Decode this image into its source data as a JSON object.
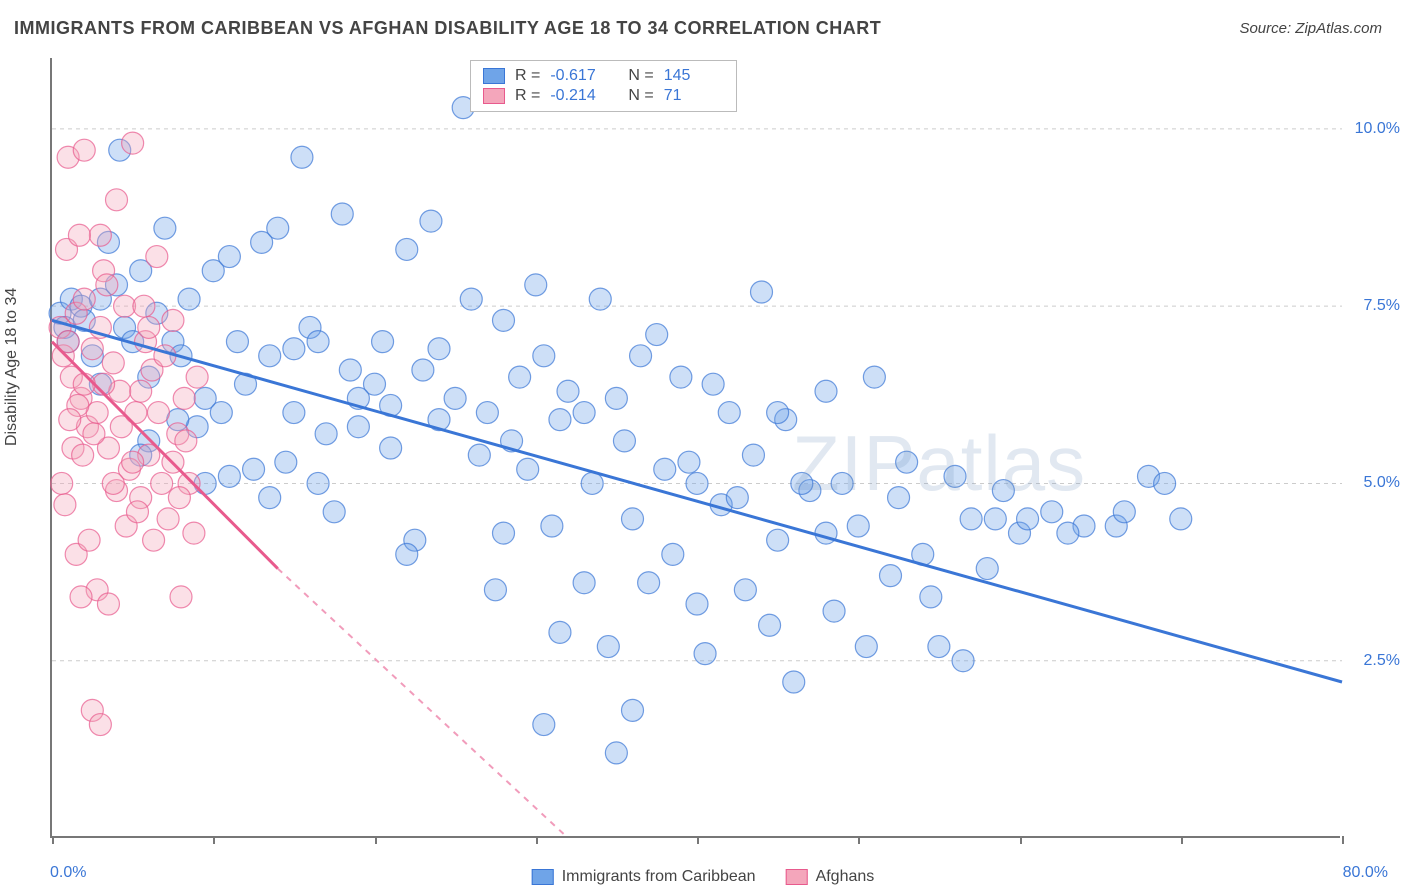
{
  "title": "IMMIGRANTS FROM CARIBBEAN VS AFGHAN DISABILITY AGE 18 TO 34 CORRELATION CHART",
  "source_label": "Source: ZipAtlas.com",
  "ylabel": "Disability Age 18 to 34",
  "watermark": "ZIPatlas",
  "chart": {
    "type": "scatter",
    "background_color": "#ffffff",
    "grid_color": "#cccccc",
    "axis_color": "#777777",
    "xlim": [
      0,
      80
    ],
    "ylim": [
      0,
      11
    ],
    "xticks": [
      0,
      10,
      20,
      30,
      40,
      50,
      60,
      70,
      80
    ],
    "x_display_min": "0.0%",
    "x_display_max": "80.0%",
    "ygrid": [
      2.5,
      5.0,
      7.5,
      10.0
    ],
    "ygrid_labels": [
      "2.5%",
      "5.0%",
      "7.5%",
      "10.0%"
    ],
    "tick_label_color": "#3a76d6",
    "marker_radius": 11,
    "marker_opacity": 0.35,
    "marker_stroke_opacity": 0.7,
    "title_fontsize": 18,
    "label_fontsize": 16
  },
  "series": [
    {
      "name": "Immigrants from Caribbean",
      "color": "#6fa4e8",
      "stroke": "#3a76d6",
      "R": "-0.617",
      "N": "145",
      "trend": {
        "x1": 0,
        "y1": 7.3,
        "x2": 80,
        "y2": 2.2,
        "solid": true,
        "dash_after_x": 80
      },
      "points": [
        [
          0.5,
          7.4
        ],
        [
          0.8,
          7.2
        ],
        [
          1.0,
          7.0
        ],
        [
          1.2,
          7.6
        ],
        [
          1.8,
          7.5
        ],
        [
          2.0,
          7.3
        ],
        [
          2.5,
          6.8
        ],
        [
          3.0,
          7.6
        ],
        [
          3.5,
          8.4
        ],
        [
          4.0,
          7.8
        ],
        [
          4.2,
          9.7
        ],
        [
          4.5,
          7.2
        ],
        [
          5.0,
          7.0
        ],
        [
          5.5,
          8.0
        ],
        [
          6.0,
          6.5
        ],
        [
          6.5,
          7.4
        ],
        [
          7.0,
          8.6
        ],
        [
          7.5,
          7.0
        ],
        [
          8.0,
          6.8
        ],
        [
          8.5,
          7.6
        ],
        [
          9.0,
          5.8
        ],
        [
          9.5,
          6.2
        ],
        [
          10.0,
          8.0
        ],
        [
          10.5,
          6.0
        ],
        [
          11.0,
          8.2
        ],
        [
          11.5,
          7.0
        ],
        [
          12.0,
          6.4
        ],
        [
          12.5,
          5.2
        ],
        [
          13.0,
          8.4
        ],
        [
          13.5,
          6.8
        ],
        [
          14.0,
          8.6
        ],
        [
          14.5,
          5.3
        ],
        [
          15.0,
          6.0
        ],
        [
          15.5,
          9.6
        ],
        [
          16.0,
          7.2
        ],
        [
          16.5,
          7.0
        ],
        [
          17.0,
          5.7
        ],
        [
          18.0,
          8.8
        ],
        [
          18.5,
          6.6
        ],
        [
          19.0,
          5.8
        ],
        [
          20.0,
          6.4
        ],
        [
          20.5,
          7.0
        ],
        [
          21.0,
          5.5
        ],
        [
          22.0,
          8.3
        ],
        [
          22.5,
          4.2
        ],
        [
          23.0,
          6.6
        ],
        [
          23.5,
          8.7
        ],
        [
          24.0,
          5.9
        ],
        [
          25.0,
          6.2
        ],
        [
          25.5,
          10.3
        ],
        [
          26.0,
          7.6
        ],
        [
          26.5,
          5.4
        ],
        [
          27.0,
          6.0
        ],
        [
          28.0,
          4.3
        ],
        [
          28.5,
          5.6
        ],
        [
          27.5,
          3.5
        ],
        [
          29.0,
          6.5
        ],
        [
          29.5,
          5.2
        ],
        [
          30.0,
          7.8
        ],
        [
          30.5,
          6.8
        ],
        [
          31.0,
          4.4
        ],
        [
          31.5,
          5.9
        ],
        [
          32.0,
          6.3
        ],
        [
          33.0,
          3.6
        ],
        [
          33.5,
          5.0
        ],
        [
          34.0,
          7.6
        ],
        [
          34.5,
          2.7
        ],
        [
          35.0,
          6.2
        ],
        [
          35.5,
          5.6
        ],
        [
          36.0,
          4.5
        ],
        [
          36.5,
          6.8
        ],
        [
          37.0,
          3.6
        ],
        [
          38.0,
          5.2
        ],
        [
          38.5,
          4.0
        ],
        [
          39.0,
          6.5
        ],
        [
          40.0,
          5.0
        ],
        [
          40.5,
          2.6
        ],
        [
          41.0,
          6.4
        ],
        [
          41.5,
          4.7
        ],
        [
          42.0,
          6.0
        ],
        [
          43.0,
          3.5
        ],
        [
          43.5,
          5.4
        ],
        [
          44.0,
          7.7
        ],
        [
          45.0,
          4.2
        ],
        [
          45.5,
          5.9
        ],
        [
          46.0,
          2.2
        ],
        [
          47.0,
          4.9
        ],
        [
          48.0,
          6.3
        ],
        [
          48.5,
          3.2
        ],
        [
          49.0,
          5.0
        ],
        [
          50.0,
          4.4
        ],
        [
          51.0,
          6.5
        ],
        [
          52.0,
          3.7
        ],
        [
          53.0,
          5.3
        ],
        [
          54.0,
          4.0
        ],
        [
          55.0,
          2.7
        ],
        [
          56.0,
          5.1
        ],
        [
          57.0,
          4.5
        ],
        [
          58.0,
          3.8
        ],
        [
          59.0,
          4.9
        ],
        [
          60.0,
          4.3
        ],
        [
          62.0,
          4.6
        ],
        [
          64.0,
          4.4
        ],
        [
          66.0,
          4.4
        ],
        [
          68.0,
          5.1
        ],
        [
          70.0,
          4.5
        ],
        [
          35.0,
          1.2
        ],
        [
          30.5,
          1.6
        ],
        [
          9.5,
          5.0
        ],
        [
          11.0,
          5.1
        ],
        [
          6.0,
          5.6
        ],
        [
          3.0,
          6.4
        ],
        [
          5.5,
          5.4
        ],
        [
          7.8,
          5.9
        ],
        [
          13.5,
          4.8
        ],
        [
          15.0,
          6.9
        ],
        [
          16.5,
          5.0
        ],
        [
          19.0,
          6.2
        ],
        [
          17.5,
          4.6
        ],
        [
          22.0,
          4.0
        ],
        [
          24.0,
          6.9
        ],
        [
          21.0,
          6.1
        ],
        [
          46.5,
          5.0
        ],
        [
          50.5,
          2.7
        ],
        [
          37.5,
          7.1
        ],
        [
          31.5,
          2.9
        ],
        [
          39.5,
          5.3
        ],
        [
          42.5,
          4.8
        ],
        [
          36.0,
          1.8
        ],
        [
          28.0,
          7.3
        ],
        [
          33.0,
          6.0
        ],
        [
          40.0,
          3.3
        ],
        [
          44.5,
          3.0
        ],
        [
          52.5,
          4.8
        ],
        [
          56.5,
          2.5
        ],
        [
          60.5,
          4.5
        ],
        [
          63.0,
          4.3
        ],
        [
          66.5,
          4.6
        ],
        [
          69.0,
          5.0
        ],
        [
          58.5,
          4.5
        ],
        [
          54.5,
          3.4
        ],
        [
          48.0,
          4.3
        ],
        [
          45.0,
          6.0
        ]
      ]
    },
    {
      "name": "Afghans",
      "color": "#f4a6bb",
      "stroke": "#e85a8d",
      "R": "-0.214",
      "N": "71",
      "trend": {
        "x1": 0,
        "y1": 7.0,
        "x2": 14,
        "y2": 3.8,
        "solid": true,
        "dash_after_x": 32,
        "dash_y": 0
      },
      "points": [
        [
          0.5,
          7.2
        ],
        [
          0.7,
          6.8
        ],
        [
          1.0,
          7.0
        ],
        [
          1.2,
          6.5
        ],
        [
          1.5,
          7.4
        ],
        [
          1.8,
          6.2
        ],
        [
          2.0,
          7.6
        ],
        [
          2.2,
          5.8
        ],
        [
          2.5,
          6.9
        ],
        [
          2.8,
          6.0
        ],
        [
          3.0,
          7.2
        ],
        [
          3.2,
          8.0
        ],
        [
          3.5,
          5.5
        ],
        [
          3.8,
          6.7
        ],
        [
          4.0,
          9.0
        ],
        [
          4.2,
          6.3
        ],
        [
          4.5,
          7.5
        ],
        [
          4.8,
          5.2
        ],
        [
          5.0,
          9.8
        ],
        [
          5.2,
          6.0
        ],
        [
          5.5,
          4.8
        ],
        [
          5.8,
          7.0
        ],
        [
          6.0,
          5.4
        ],
        [
          6.2,
          6.6
        ],
        [
          6.5,
          8.2
        ],
        [
          6.8,
          5.0
        ],
        [
          7.0,
          6.8
        ],
        [
          7.2,
          4.5
        ],
        [
          7.5,
          7.3
        ],
        [
          7.8,
          5.7
        ],
        [
          8.0,
          3.4
        ],
        [
          8.2,
          6.2
        ],
        [
          8.5,
          5.0
        ],
        [
          8.8,
          4.3
        ],
        [
          9.0,
          6.5
        ],
        [
          1.0,
          9.6
        ],
        [
          2.0,
          9.7
        ],
        [
          3.0,
          8.5
        ],
        [
          1.5,
          4.0
        ],
        [
          2.3,
          4.2
        ],
        [
          2.8,
          3.5
        ],
        [
          3.5,
          3.3
        ],
        [
          4.0,
          4.9
        ],
        [
          1.8,
          3.4
        ],
        [
          2.5,
          1.8
        ],
        [
          3.0,
          1.6
        ],
        [
          0.8,
          4.7
        ],
        [
          1.3,
          5.5
        ],
        [
          3.8,
          5.0
        ],
        [
          4.3,
          5.8
        ],
        [
          5.0,
          5.3
        ],
        [
          5.5,
          6.3
        ],
        [
          6.0,
          7.2
        ],
        [
          3.2,
          6.4
        ],
        [
          2.0,
          6.4
        ],
        [
          1.6,
          6.1
        ],
        [
          4.6,
          4.4
        ],
        [
          5.3,
          4.6
        ],
        [
          6.3,
          4.2
        ],
        [
          7.5,
          5.3
        ],
        [
          8.3,
          5.6
        ],
        [
          0.6,
          5.0
        ],
        [
          1.1,
          5.9
        ],
        [
          1.9,
          5.4
        ],
        [
          2.6,
          5.7
        ],
        [
          3.4,
          7.8
        ],
        [
          0.9,
          8.3
        ],
        [
          1.7,
          8.5
        ],
        [
          5.7,
          7.5
        ],
        [
          6.6,
          6.0
        ],
        [
          7.9,
          4.8
        ]
      ]
    }
  ],
  "legend_top": {
    "R_label": "R =",
    "N_label": "N ="
  },
  "legend_bottom_labels": [
    "Immigrants from Caribbean",
    "Afghans"
  ]
}
